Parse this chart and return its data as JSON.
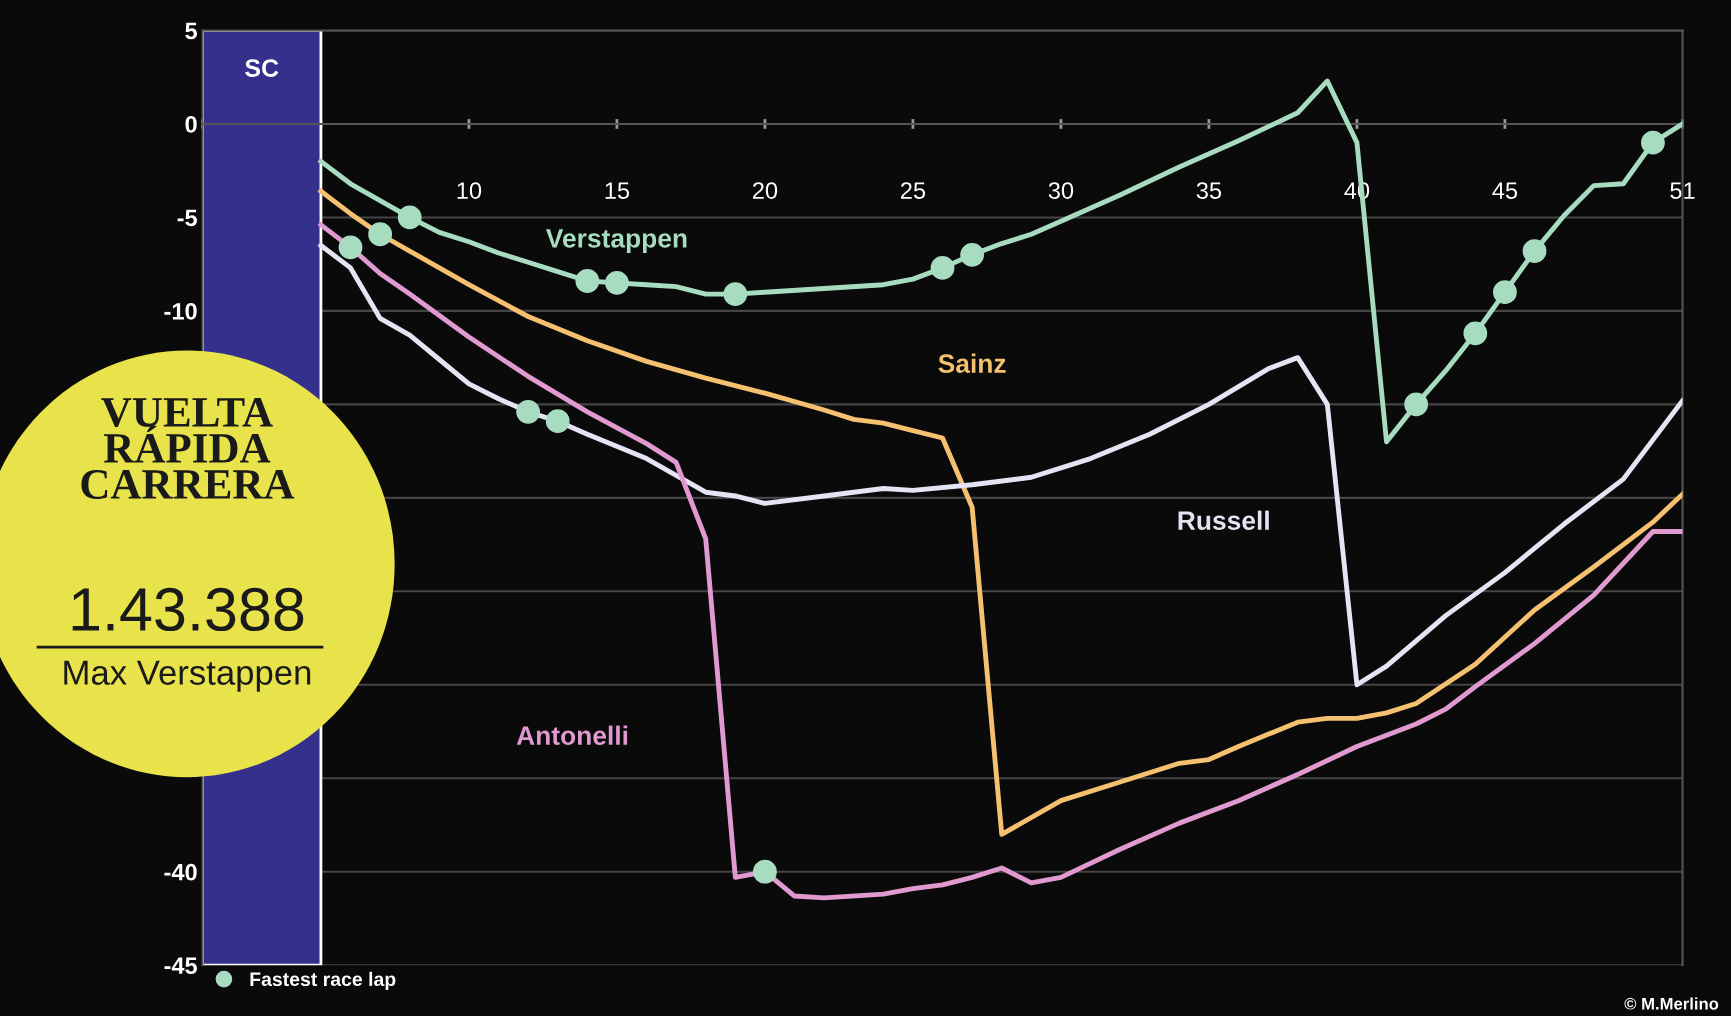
{
  "chart_data": {
    "type": "line",
    "xlim": [
      1,
      51
    ],
    "ylim": [
      -45,
      5
    ],
    "xticks": [
      {
        "value": 1,
        "label": null
      },
      {
        "value": 5,
        "label": null
      },
      10,
      15,
      20,
      25,
      30,
      35,
      40,
      45,
      51
    ],
    "yticks": [
      5,
      0,
      -5,
      -10,
      {
        "value": -15,
        "label": null
      },
      {
        "value": -20,
        "label": null
      },
      {
        "value": -25,
        "label": null
      },
      {
        "value": -30,
        "label": null
      },
      {
        "value": -35,
        "label": null
      },
      -40,
      -45
    ],
    "grid": "y",
    "legend": "bottom left",
    "line_style": "solid",
    "bands": [
      {
        "axis": "x",
        "from": 1,
        "to": 5,
        "label": "SC",
        "color": "#34308c"
      }
    ],
    "series": [
      {
        "name": "Verstappen",
        "color": "#a8dcc0",
        "x": [
          5,
          6,
          7,
          8,
          9,
          10,
          11,
          12,
          13,
          14,
          15,
          16,
          17,
          18,
          19,
          20,
          22,
          24,
          25,
          26,
          27,
          28,
          29,
          30,
          32,
          34,
          36,
          38,
          39,
          40,
          41,
          42,
          43,
          44,
          45,
          46,
          47,
          48,
          49,
          50,
          51
        ],
        "values": [
          -2.0,
          -3.2,
          -4.1,
          -5.0,
          -5.8,
          -6.3,
          -6.9,
          -7.4,
          -7.9,
          -8.4,
          -8.5,
          -8.6,
          -8.7,
          -9.1,
          -9.1,
          -9.0,
          -8.8,
          -8.6,
          -8.3,
          -7.7,
          -7.0,
          -6.4,
          -5.9,
          -5.2,
          -3.8,
          -2.3,
          -0.9,
          0.6,
          2.3,
          -1.0,
          -17.0,
          -15.0,
          -13.2,
          -11.2,
          -9.0,
          -6.8,
          -4.9,
          -3.3,
          -3.2,
          -1.0,
          0.0
        ]
      },
      {
        "name": "Sainz",
        "color": "#f5c070",
        "x": [
          5,
          6,
          7,
          8,
          10,
          12,
          14,
          16,
          18,
          20,
          22,
          23,
          24,
          25,
          26,
          27,
          28,
          30,
          32,
          34,
          35,
          36,
          38,
          39,
          40,
          41,
          42,
          44,
          46,
          48,
          50,
          51
        ],
        "values": [
          -3.6,
          -4.8,
          -5.9,
          -6.8,
          -8.6,
          -10.3,
          -11.6,
          -12.7,
          -13.6,
          -14.4,
          -15.3,
          -15.8,
          -16.0,
          -16.4,
          -16.8,
          -20.5,
          -38.0,
          -36.2,
          -35.2,
          -34.2,
          -34.0,
          -33.3,
          -32.0,
          -31.8,
          -31.8,
          -31.5,
          -31.0,
          -28.9,
          -26.0,
          -23.7,
          -21.3,
          -19.8
        ]
      },
      {
        "name": "Russell",
        "color": "#e4e4f4",
        "x": [
          5,
          6,
          7,
          8,
          9,
          10,
          11,
          12,
          13,
          14,
          16,
          17,
          18,
          19,
          20,
          22,
          24,
          25,
          27,
          29,
          31,
          33,
          35,
          37,
          38,
          39,
          40,
          41,
          43,
          45,
          47,
          49,
          51
        ],
        "values": [
          -6.5,
          -7.7,
          -10.4,
          -11.3,
          -12.6,
          -13.9,
          -14.7,
          -15.4,
          -15.9,
          -16.6,
          -17.9,
          -18.8,
          -19.7,
          -19.9,
          -20.3,
          -19.9,
          -19.5,
          -19.6,
          -19.3,
          -18.9,
          -17.9,
          -16.6,
          -15.0,
          -13.1,
          -12.5,
          -15.0,
          -30.0,
          -29.0,
          -26.3,
          -24.0,
          -21.4,
          -19.0,
          -14.8
        ]
      },
      {
        "name": "Antonelli",
        "color": "#e09ad0",
        "x": [
          5,
          6,
          7,
          8,
          10,
          12,
          14,
          16,
          17,
          18,
          19,
          20,
          21,
          22,
          24,
          25,
          26,
          27,
          28,
          29,
          30,
          32,
          34,
          36,
          38,
          40,
          42,
          43,
          44,
          46,
          48,
          50,
          51
        ],
        "values": [
          -5.4,
          -6.6,
          -8.0,
          -9.1,
          -11.4,
          -13.5,
          -15.4,
          -17.1,
          -18.1,
          -22.2,
          -40.3,
          -40.0,
          -41.3,
          -41.4,
          -41.2,
          -40.9,
          -40.7,
          -40.3,
          -39.8,
          -40.6,
          -40.3,
          -38.8,
          -37.4,
          -36.2,
          -34.8,
          -33.3,
          -32.1,
          -31.3,
          -30.1,
          -27.8,
          -25.2,
          -21.8,
          -21.8
        ]
      },
      {
        "name": "Fastest race lap",
        "type": "scatter",
        "marker": "circle",
        "color": "#a8dcc0",
        "x": [
          8,
          14,
          15,
          19,
          26,
          27,
          42,
          44,
          45,
          46,
          50,
          7,
          6,
          20,
          12,
          13
        ],
        "values": [
          -5.0,
          -8.4,
          -8.5,
          -9.1,
          -7.7,
          -7.0,
          -15.0,
          -11.2,
          -9.0,
          -6.8,
          -1.0,
          -5.9,
          -6.6,
          -40.0,
          -15.4,
          -15.9
        ]
      }
    ],
    "annotations": [
      "VUELTA\nRÁPIDA\nCARRERA",
      "1.43.388",
      "Max Verstappen",
      "© M.Merlino"
    ]
  }
}
